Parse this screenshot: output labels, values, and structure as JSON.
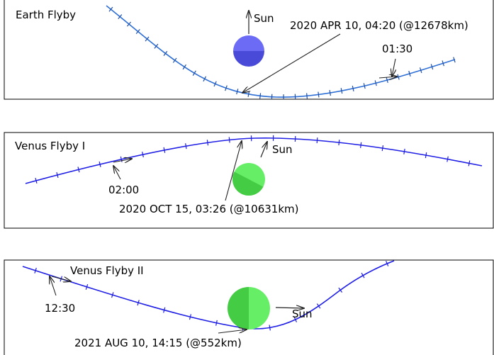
{
  "panels": [
    {
      "title": "Earth Flyby",
      "planet_color_light": "#6b6bf5",
      "planet_color_dark": "#4a4ad8",
      "track_color": "#2e6fd6",
      "sun_label": "Sun",
      "closest_approach": "2020 APR 10, 04:20 (@12678km)",
      "time_label": "01:30"
    },
    {
      "title": "Venus Flyby I",
      "planet_color_light": "#66ee66",
      "planet_color_dark": "#44cc44",
      "track_color": "#1f1fe6",
      "sun_label": "Sun",
      "closest_approach": "2020 OCT 15, 03:26 (@10631km)",
      "time_label": "02:00"
    },
    {
      "title": "Venus Flyby II",
      "planet_color_light": "#66ee66",
      "planet_color_dark": "#44cc44",
      "track_color": "#1f1fe6",
      "sun_label": "Sun",
      "closest_approach": "2021 AUG 10, 14:15 (@552km)",
      "time_label": "12:30"
    }
  ]
}
